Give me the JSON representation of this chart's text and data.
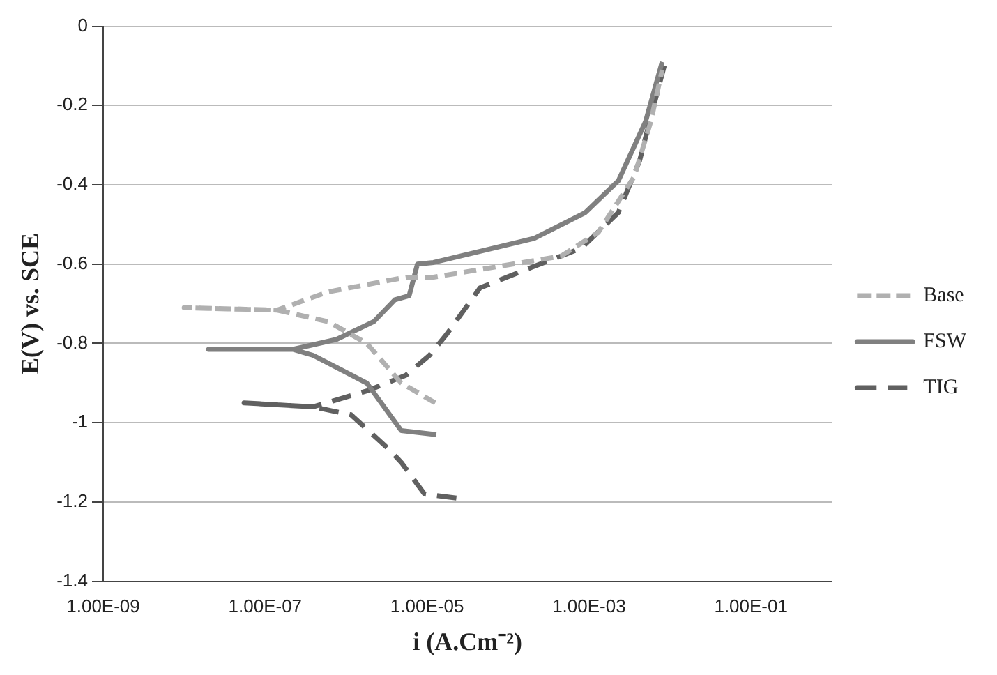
{
  "chart_data": {
    "type": "line",
    "xlabel": "i (A.Cm⁻²)",
    "ylabel": "E(V) vs. SCE",
    "log": "x",
    "grid": "y",
    "legend": "right",
    "marker": "none",
    "xlim": [
      1e-09,
      1
    ],
    "xticks": [
      {
        "value": 1e-09,
        "label": "1.00E-09"
      },
      {
        "value": 1e-07,
        "label": "1.00E-07"
      },
      {
        "value": 1e-05,
        "label": "1.00E-05"
      },
      {
        "value": 0.001,
        "label": "1.00E-03"
      },
      {
        "value": 0.1,
        "label": "1.00E-01"
      }
    ],
    "ylim": [
      -1.4,
      0
    ],
    "yticks": [
      0,
      -0.2,
      -0.4,
      -0.6,
      -0.8,
      -1,
      -1.2,
      -1.4
    ],
    "series": [
      {
        "name": "Base",
        "color": "#b0b0b0",
        "line_style": "dashed",
        "x": [
          1.26e-05,
          4.8e-06,
          1.8e-06,
          6e-07,
          1.4e-07,
          1e-08,
          1.4e-07,
          6e-07,
          5.5e-06,
          1.2e-05,
          0.00045,
          0.0013,
          0.0036,
          0.0058,
          0.008
        ],
        "values": [
          -0.95,
          -0.9,
          -0.8,
          -0.745,
          -0.716,
          -0.71,
          -0.716,
          -0.67,
          -0.633,
          -0.633,
          -0.58,
          -0.52,
          -0.38,
          -0.24,
          -0.11
        ]
      },
      {
        "name": "FSW",
        "color": "#808080",
        "line_style": "solid",
        "x": [
          1.3e-05,
          4.8e-06,
          1.8e-06,
          3.9e-07,
          2.2e-07,
          2e-08,
          2.2e-07,
          7.6e-07,
          2.2e-06,
          4e-06,
          6e-06,
          7.6e-06,
          1.2e-05,
          0.00021,
          0.0009,
          0.0023,
          0.005,
          0.008
        ],
        "values": [
          -1.03,
          -1.02,
          -0.9,
          -0.83,
          -0.815,
          -0.815,
          -0.815,
          -0.79,
          -0.745,
          -0.69,
          -0.68,
          -0.6,
          -0.596,
          -0.535,
          -0.47,
          -0.39,
          -0.24,
          -0.09
        ]
      },
      {
        "name": "TIG",
        "color": "#606060",
        "line_style": "dashed",
        "x": [
          2.3e-05,
          9.3e-06,
          4.8e-06,
          3.5e-06,
          1.15e-06,
          3.9e-07,
          5.5e-08,
          3.9e-07,
          1.8e-06,
          5.5e-06,
          1.07e-05,
          1.7e-05,
          4.5e-05,
          0.000185,
          0.0008,
          0.0023,
          0.0042,
          0.0063,
          0.0085
        ],
        "values": [
          -1.19,
          -1.18,
          -1.1,
          -1.07,
          -0.98,
          -0.96,
          -0.95,
          -0.96,
          -0.92,
          -0.88,
          -0.83,
          -0.78,
          -0.66,
          -0.61,
          -0.56,
          -0.47,
          -0.34,
          -0.2,
          -0.1
        ]
      }
    ]
  }
}
